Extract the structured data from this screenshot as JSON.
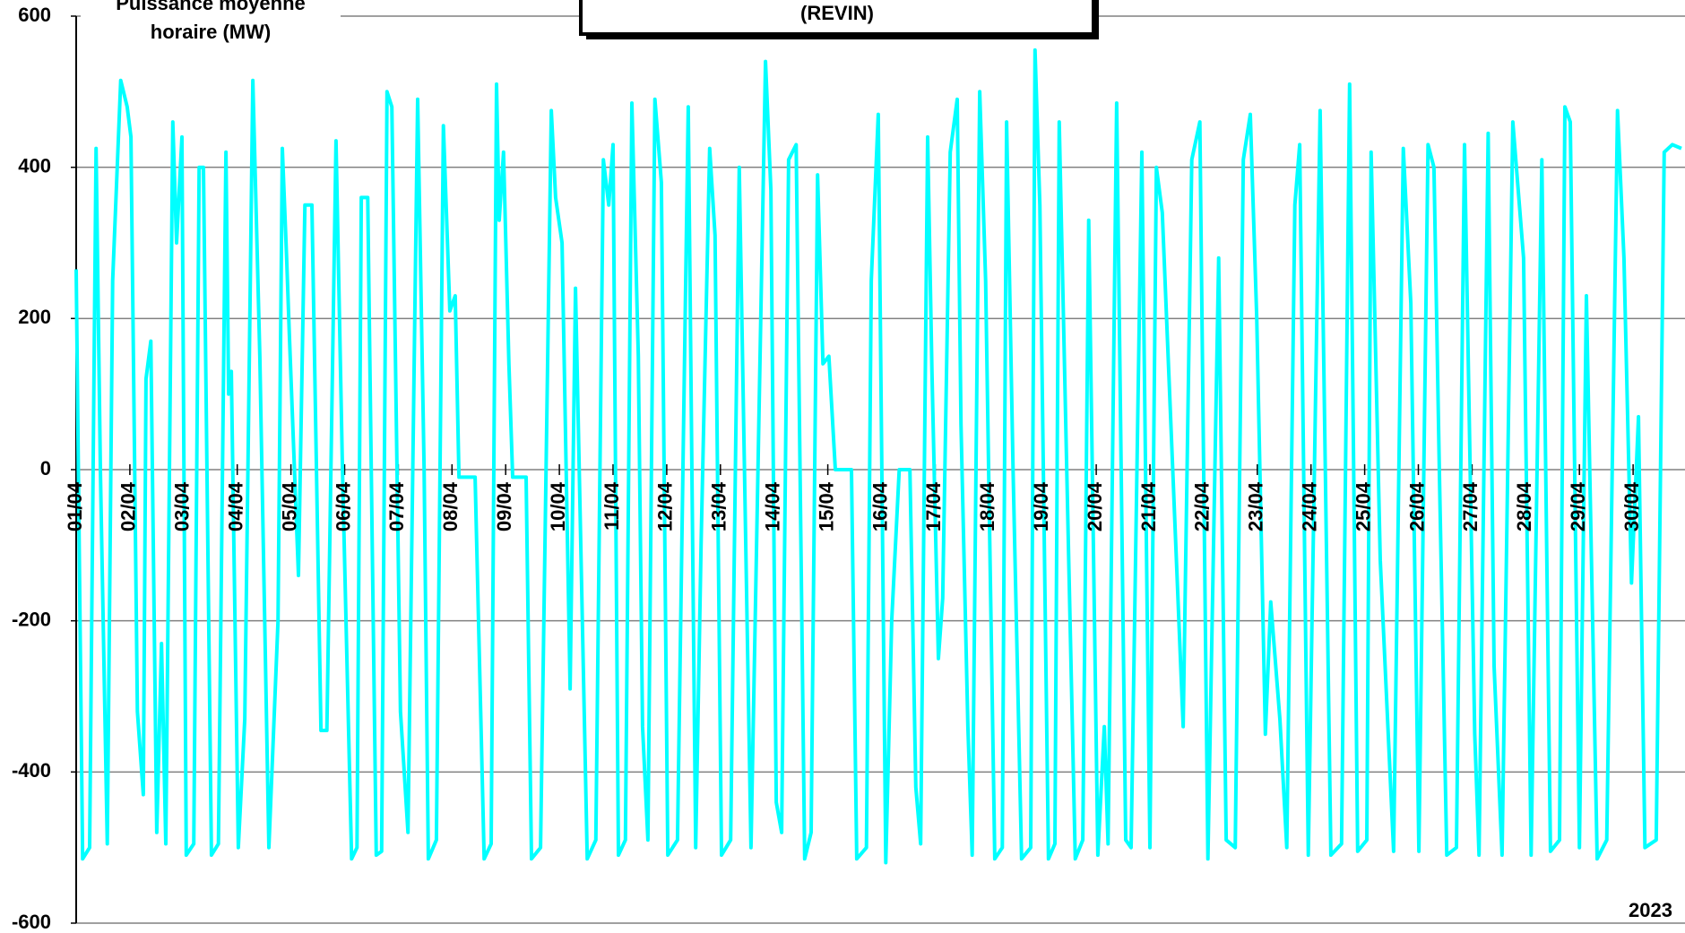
{
  "chart_data": {
    "type": "line",
    "title": "(REVIN)",
    "y_label": [
      "Puissance moyenne",
      "horaire (MW)"
    ],
    "annotation": "2023",
    "xlim": [
      0,
      30
    ],
    "ylim": [
      -600,
      600
    ],
    "yticks": [
      -600,
      -400,
      -200,
      0,
      200,
      400,
      600
    ],
    "xticks": [
      {
        "value": 0,
        "label": "01/04"
      },
      {
        "value": 1,
        "label": "02/04"
      },
      {
        "value": 2,
        "label": "03/04"
      },
      {
        "value": 3,
        "label": "04/04"
      },
      {
        "value": 4,
        "label": "05/04"
      },
      {
        "value": 5,
        "label": "06/04"
      },
      {
        "value": 6,
        "label": "07/04"
      },
      {
        "value": 7,
        "label": "08/04"
      },
      {
        "value": 8,
        "label": "09/04"
      },
      {
        "value": 9,
        "label": "10/04"
      },
      {
        "value": 10,
        "label": "11/04"
      },
      {
        "value": 11,
        "label": "12/04"
      },
      {
        "value": 12,
        "label": "13/04"
      },
      {
        "value": 13,
        "label": "14/04"
      },
      {
        "value": 14,
        "label": "15/04"
      },
      {
        "value": 15,
        "label": "16/04"
      },
      {
        "value": 16,
        "label": "17/04"
      },
      {
        "value": 17,
        "label": "18/04"
      },
      {
        "value": 18,
        "label": "19/04"
      },
      {
        "value": 19,
        "label": "20/04"
      },
      {
        "value": 20,
        "label": "21/04"
      },
      {
        "value": 21,
        "label": "22/04"
      },
      {
        "value": 22,
        "label": "23/04"
      },
      {
        "value": 23,
        "label": "24/04"
      },
      {
        "value": 24,
        "label": "25/04"
      },
      {
        "value": 25,
        "label": "26/04"
      },
      {
        "value": 26,
        "label": "27/04"
      },
      {
        "value": 27,
        "label": "28/04"
      },
      {
        "value": 28,
        "label": "29/04"
      },
      {
        "value": 29,
        "label": "30/04"
      }
    ],
    "grid": true,
    "series": [
      {
        "color": "#00ffff",
        "x": [
          0.0,
          0.12,
          0.25,
          0.37,
          0.45,
          0.58,
          0.68,
          0.83,
          0.95,
          1.02,
          1.14,
          1.25,
          1.3,
          1.39,
          1.5,
          1.59,
          1.67,
          1.8,
          1.87,
          1.97,
          2.05,
          2.19,
          2.29,
          2.37,
          2.52,
          2.65,
          2.79,
          2.84,
          2.89,
          3.02,
          3.14,
          3.29,
          3.42,
          3.59,
          3.76,
          3.84,
          3.92,
          3.97,
          4.14,
          4.26,
          4.39,
          4.56,
          4.67,
          4.84,
          4.96,
          5.13,
          5.23,
          5.31,
          5.43,
          5.59,
          5.69,
          5.79,
          5.88,
          6.04,
          6.18,
          6.36,
          6.48,
          6.56,
          6.71,
          6.84,
          6.96,
          7.06,
          7.13,
          7.43,
          7.6,
          7.73,
          7.83,
          7.88,
          7.96,
          8.06,
          8.13,
          8.38,
          8.48,
          8.65,
          8.85,
          8.93,
          9.05,
          9.2,
          9.3,
          9.52,
          9.68,
          9.82,
          9.92,
          10.0,
          10.1,
          10.23,
          10.35,
          10.47,
          10.55,
          10.65,
          10.78,
          10.9,
          11.02,
          11.2,
          11.4,
          11.54,
          11.64,
          11.8,
          11.9,
          12.02,
          12.19,
          12.35,
          12.57,
          12.84,
          12.94,
          13.04,
          13.14,
          13.27,
          13.41,
          13.57,
          13.69,
          13.81,
          13.91,
          14.02,
          14.14,
          14.44,
          14.54,
          14.72,
          14.81,
          14.94,
          15.08,
          15.19,
          15.33,
          15.53,
          15.64,
          15.73,
          15.86,
          15.94,
          16.06,
          16.14,
          16.28,
          16.41,
          16.48,
          16.61,
          16.69,
          16.83,
          16.94,
          17.11,
          17.25,
          17.33,
          17.45,
          17.61,
          17.78,
          17.86,
          17.95,
          18.11,
          18.23,
          18.31,
          18.45,
          18.61,
          18.75,
          18.86,
          19.03,
          19.15,
          19.22,
          19.38,
          19.55,
          19.65,
          19.85,
          20.0,
          20.12,
          20.23,
          20.62,
          20.78,
          20.93,
          21.08,
          21.28,
          21.42,
          21.59,
          21.74,
          21.87,
          21.99,
          22.15,
          22.25,
          22.42,
          22.55,
          22.7,
          22.79,
          22.95,
          23.17,
          23.37,
          23.57,
          23.72,
          23.87,
          24.04,
          24.12,
          24.29,
          24.54,
          24.72,
          24.86,
          25.01,
          25.18,
          25.29,
          25.39,
          25.53,
          25.71,
          25.86,
          26.05,
          26.13,
          26.3,
          26.41,
          26.56,
          26.76,
          26.96,
          27.1,
          27.3,
          27.46,
          27.63,
          27.73,
          27.83,
          28.0,
          28.13,
          28.33,
          28.51,
          28.71,
          28.83,
          28.97,
          29.1,
          29.22,
          29.43,
          29.58,
          29.73,
          29.9
        ],
        "values": [
          265,
          -515,
          -500,
          425,
          0,
          -495,
          250,
          515,
          480,
          440,
          -320,
          -430,
          120,
          170,
          -480,
          -230,
          -495,
          460,
          300,
          440,
          -510,
          -495,
          400,
          400,
          -510,
          -495,
          420,
          100,
          130,
          -500,
          -330,
          515,
          150,
          -500,
          -200,
          425,
          280,
          180,
          -140,
          350,
          350,
          -345,
          -345,
          435,
          0,
          -515,
          -500,
          360,
          360,
          -510,
          -505,
          500,
          480,
          -320,
          -480,
          490,
          0,
          -515,
          -490,
          455,
          210,
          230,
          -10,
          -10,
          -515,
          -495,
          510,
          330,
          420,
          140,
          -10,
          -10,
          -515,
          -500,
          475,
          360,
          300,
          -290,
          240,
          -515,
          -490,
          410,
          350,
          430,
          -510,
          -490,
          485,
          150,
          -340,
          -490,
          490,
          380,
          -510,
          -490,
          480,
          -500,
          -100,
          425,
          310,
          -510,
          -490,
          400,
          -500,
          540,
          370,
          -440,
          -480,
          410,
          430,
          -515,
          -480,
          390,
          140,
          150,
          0,
          0,
          -515,
          -500,
          250,
          470,
          -520,
          -200,
          0,
          0,
          -420,
          -495,
          440,
          130,
          -250,
          -170,
          420,
          490,
          60,
          -340,
          -510,
          500,
          250,
          -515,
          -500,
          460,
          0,
          -515,
          -500,
          555,
          350,
          -515,
          -495,
          460,
          0,
          -515,
          -490,
          330,
          -510,
          -340,
          -495,
          485,
          -490,
          -500,
          420,
          -500,
          400,
          340,
          -340,
          410,
          460,
          -515,
          280,
          -490,
          -500,
          410,
          470,
          200,
          -350,
          -175,
          -330,
          -500,
          350,
          430,
          -510,
          475,
          -510,
          -495,
          510,
          -505,
          -490,
          420,
          -120,
          -505,
          425,
          220,
          -505,
          430,
          400,
          0,
          -510,
          -500,
          430,
          -350,
          -510,
          445,
          -260,
          -510,
          460,
          280,
          -510,
          410,
          -505,
          -490,
          480,
          460,
          -500,
          230,
          -515,
          -490,
          475,
          280,
          -150,
          70,
          -500,
          -490,
          420,
          430,
          425
        ]
      }
    ]
  }
}
